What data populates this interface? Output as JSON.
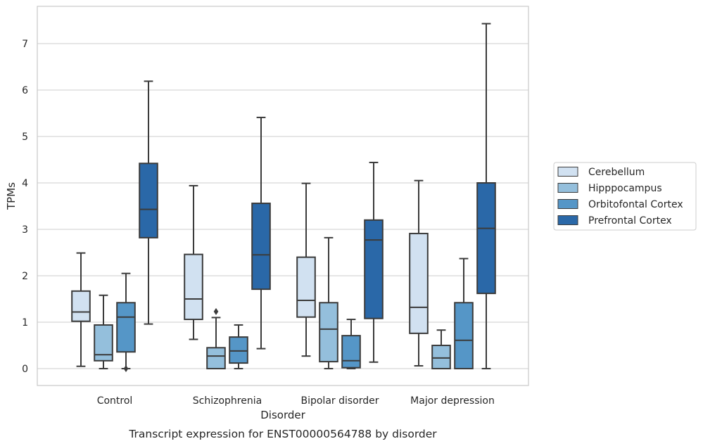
{
  "caption": "Transcript expression for ENST00000564788 by disorder",
  "chart_data": {
    "type": "box",
    "xlabel": "Disorder",
    "ylabel": "TPMs",
    "ylim": [
      -0.35,
      7.8
    ],
    "yticks": [
      0,
      1,
      2,
      3,
      4,
      5,
      6,
      7
    ],
    "grid": "horizontal",
    "legend_position": "right",
    "categories": [
      "Control",
      "Schizophrenia",
      "Bipolar disorder",
      "Major depression"
    ],
    "series": [
      {
        "name": "Cerebellum",
        "color": "#d1e1f1",
        "boxes": [
          {
            "whislo": 0.05,
            "q1": 1.02,
            "med": 1.22,
            "q3": 1.67,
            "whishi": 2.49,
            "fliers": []
          },
          {
            "whislo": 0.63,
            "q1": 1.06,
            "med": 1.5,
            "q3": 2.46,
            "whishi": 3.94,
            "fliers": []
          },
          {
            "whislo": 0.27,
            "q1": 1.11,
            "med": 1.47,
            "q3": 2.4,
            "whishi": 3.99,
            "fliers": []
          },
          {
            "whislo": 0.06,
            "q1": 0.76,
            "med": 1.32,
            "q3": 2.91,
            "whishi": 4.05,
            "fliers": []
          }
        ]
      },
      {
        "name": "Hipppocampus",
        "color": "#94bfdc",
        "boxes": [
          {
            "whislo": 0.0,
            "q1": 0.17,
            "med": 0.3,
            "q3": 0.94,
            "whishi": 1.58,
            "fliers": []
          },
          {
            "whislo": 0.0,
            "q1": 0.0,
            "med": 0.27,
            "q3": 0.45,
            "whishi": 1.1,
            "fliers": [
              1.23
            ]
          },
          {
            "whislo": 0.0,
            "q1": 0.15,
            "med": 0.85,
            "q3": 1.42,
            "whishi": 2.82,
            "fliers": []
          },
          {
            "whislo": 0.0,
            "q1": 0.0,
            "med": 0.23,
            "q3": 0.5,
            "whishi": 0.83,
            "fliers": []
          }
        ]
      },
      {
        "name": "Orbitofontal Cortex",
        "color": "#5596c7",
        "boxes": [
          {
            "whislo": 0.0,
            "q1": 0.36,
            "med": 1.11,
            "q3": 1.42,
            "whishi": 2.05,
            "fliers": [
              0.0
            ]
          },
          {
            "whislo": 0.0,
            "q1": 0.12,
            "med": 0.38,
            "q3": 0.68,
            "whishi": 0.94,
            "fliers": []
          },
          {
            "whislo": 0.0,
            "q1": 0.02,
            "med": 0.17,
            "q3": 0.71,
            "whishi": 1.06,
            "fliers": []
          },
          {
            "whislo": 0.0,
            "q1": 0.0,
            "med": 0.61,
            "q3": 1.42,
            "whishi": 2.37,
            "fliers": []
          }
        ]
      },
      {
        "name": "Prefrontal Cortex",
        "color": "#2a68a8",
        "boxes": [
          {
            "whislo": 0.96,
            "q1": 2.82,
            "med": 3.43,
            "q3": 4.42,
            "whishi": 6.19,
            "fliers": []
          },
          {
            "whislo": 0.43,
            "q1": 1.71,
            "med": 2.45,
            "q3": 3.56,
            "whishi": 5.41,
            "fliers": []
          },
          {
            "whislo": 0.14,
            "q1": 1.08,
            "med": 2.77,
            "q3": 3.2,
            "whishi": 4.44,
            "fliers": []
          },
          {
            "whislo": 0.0,
            "q1": 1.62,
            "med": 3.02,
            "q3": 4.0,
            "whishi": 7.43,
            "fliers": []
          }
        ]
      }
    ]
  }
}
